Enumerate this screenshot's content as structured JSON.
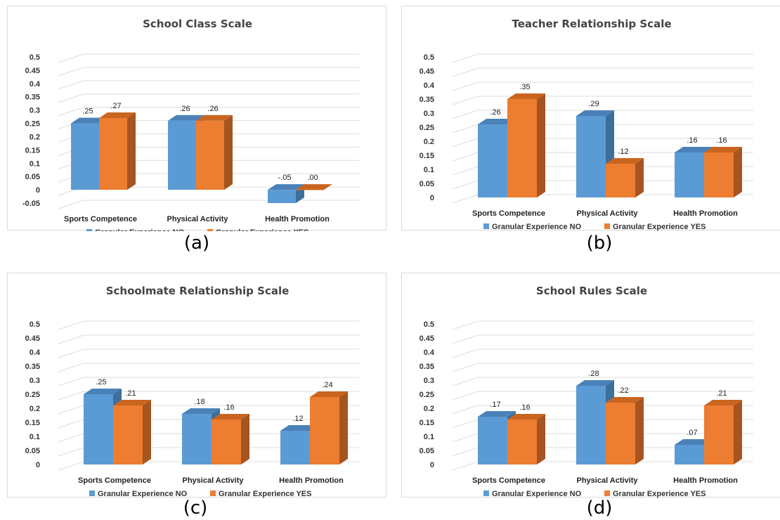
{
  "colors": {
    "blue_front": "#5b9bd5",
    "blue_side": "#3d6f9c",
    "blue_top": "#4a81b8",
    "orange_front": "#ed7d31",
    "orange_side": "#a65420",
    "orange_top": "#c9651f",
    "grid": "#dcdcdc"
  },
  "chart_data": [
    {
      "panel": "(a)",
      "type": "bar",
      "title": "School Class Scale",
      "categories": [
        "Sports Competence",
        "Physical Activity",
        "Health Promotion"
      ],
      "series": [
        {
          "name": "Granular Experience NO",
          "values": [
            0.25,
            0.26,
            -0.05
          ],
          "labels": [
            ".25",
            ".26",
            "-.05"
          ]
        },
        {
          "name": "Granular Experience YES",
          "values": [
            0.27,
            0.26,
            0.0
          ],
          "labels": [
            ".27",
            ".26",
            ".00"
          ]
        }
      ],
      "yticks": [
        "0.5",
        "0.45",
        "0.4",
        "0.35",
        "0.3",
        "0.25",
        "0.2",
        "0.15",
        "0.1",
        "0.05",
        "0",
        "-0.05"
      ],
      "ylim": [
        -0.05,
        0.5
      ],
      "grid": true,
      "legend": "bottom"
    },
    {
      "panel": "(b)",
      "type": "bar",
      "title": "Teacher Relationship Scale",
      "categories": [
        "Sports Competence",
        "Physical Activity",
        "Health Promotion"
      ],
      "series": [
        {
          "name": "Granular Experience NO",
          "values": [
            0.26,
            0.29,
            0.16
          ],
          "labels": [
            ".26",
            ".29",
            ".16"
          ]
        },
        {
          "name": "Granular Experience YES",
          "values": [
            0.35,
            0.12,
            0.16
          ],
          "labels": [
            ".35",
            ".12",
            ".16"
          ]
        }
      ],
      "yticks": [
        "0.5",
        "0.45",
        "0.4",
        "0.35",
        "0.3",
        "0.25",
        "0.2",
        "0.15",
        "0.1",
        "0.05",
        "0"
      ],
      "ylim": [
        0,
        0.5
      ],
      "grid": true,
      "legend": "bottom"
    },
    {
      "panel": "(c)",
      "type": "bar",
      "title": "Schoolmate Relationship Scale",
      "categories": [
        "Sports Competence",
        "Physical Activity",
        "Health Promotion"
      ],
      "series": [
        {
          "name": "Granular Experience NO",
          "values": [
            0.25,
            0.18,
            0.12
          ],
          "labels": [
            ".25",
            ".18",
            ".12"
          ]
        },
        {
          "name": "Granular Experience YES",
          "values": [
            0.21,
            0.16,
            0.24
          ],
          "labels": [
            ".21",
            ".16",
            ".24"
          ]
        }
      ],
      "yticks": [
        "0.5",
        "0.45",
        "0.4",
        "0.35",
        "0.3",
        "0.25",
        "0.2",
        "0.15",
        "0.1",
        "0.05",
        "0"
      ],
      "ylim": [
        0,
        0.5
      ],
      "grid": true,
      "legend": "bottom"
    },
    {
      "panel": "(d)",
      "type": "bar",
      "title": "School Rules Scale",
      "categories": [
        "Sports Competence",
        "Physical Activity",
        "Health Promotion"
      ],
      "series": [
        {
          "name": "Granular Experience NO",
          "values": [
            0.17,
            0.28,
            0.07
          ],
          "labels": [
            ".17",
            ".28",
            ".07"
          ]
        },
        {
          "name": "Granular Experience YES",
          "values": [
            0.16,
            0.22,
            0.21
          ],
          "labels": [
            ".16",
            ".22",
            ".21"
          ]
        }
      ],
      "yticks": [
        "0.5",
        "0.45",
        "0.4",
        "0.35",
        "0.3",
        "0.25",
        "0.2",
        "0.15",
        "0.1",
        "0.05",
        "0"
      ],
      "ylim": [
        0,
        0.5
      ],
      "grid": true,
      "legend": "bottom"
    }
  ]
}
